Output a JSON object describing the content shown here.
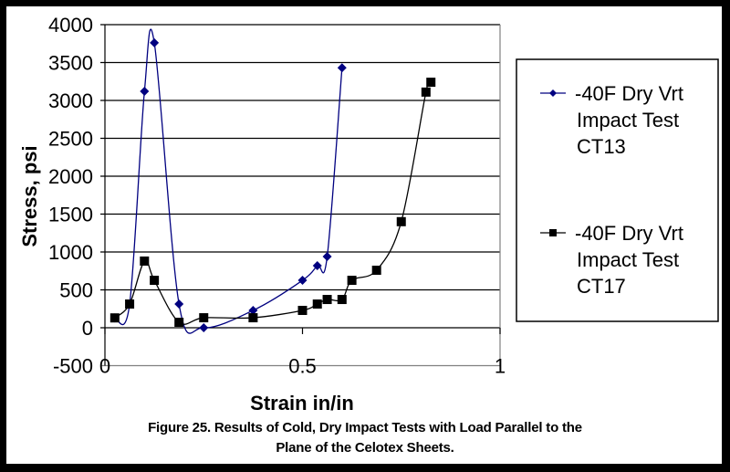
{
  "chart_data": {
    "type": "line",
    "title": "",
    "xlabel": "Strain in/in",
    "ylabel": "Stress, psi",
    "xlim": [
      0,
      1
    ],
    "ylim": [
      -500,
      4000
    ],
    "x_ticks": [
      0,
      0.5,
      1
    ],
    "x_tick_labels": [
      "0",
      "0.5",
      "1"
    ],
    "y_ticks": [
      -500,
      0,
      500,
      1000,
      1500,
      2000,
      2500,
      3000,
      3500,
      4000
    ],
    "y_tick_labels": [
      "-500",
      "0",
      "500",
      "1000",
      "1500",
      "2000",
      "2500",
      "3000",
      "3500",
      "4000"
    ],
    "grid": "horizontal",
    "legend_position": "right",
    "series": [
      {
        "name": "-40F Dry Vrt Impact Test CT13",
        "legend_lines": [
          "-40F Dry Vrt",
          "Impact Test",
          "CT13"
        ],
        "marker": "diamond",
        "color": "#000080",
        "x": [
          0.025,
          0.0625,
          0.1,
          0.125,
          0.1875,
          0.25,
          0.375,
          0.5,
          0.5375,
          0.5625,
          0.6
        ],
        "y": [
          130,
          313,
          3120,
          3760,
          313,
          0,
          229,
          626,
          820,
          940,
          3430
        ]
      },
      {
        "name": "-40F Dry Vrt Impact Test CT17",
        "legend_lines": [
          "-40F Dry Vrt",
          "Impact Test",
          "CT17"
        ],
        "marker": "square",
        "color": "#000000",
        "x": [
          0.025,
          0.0625,
          0.1,
          0.125,
          0.1875,
          0.25,
          0.375,
          0.5,
          0.5375,
          0.5625,
          0.6,
          0.625,
          0.6875,
          0.75,
          0.8125,
          0.825
        ],
        "y": [
          130,
          313,
          880,
          626,
          72,
          132,
          132,
          229,
          313,
          373,
          373,
          626,
          759,
          1400,
          3110,
          3240
        ]
      }
    ]
  },
  "caption": {
    "line1": "Figure 25. Results of Cold, Dry Impact Tests with Load Parallel to the",
    "line2": "Plane of the Celotex Sheets."
  }
}
